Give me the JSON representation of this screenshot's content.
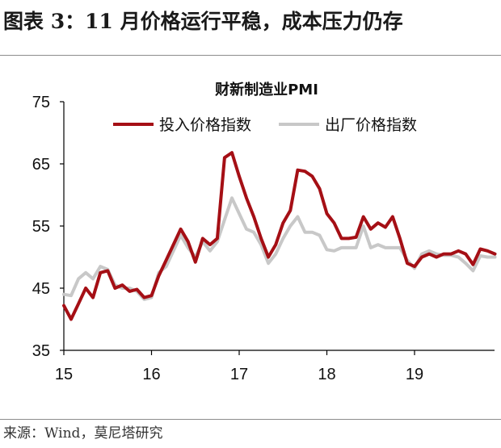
{
  "figure": {
    "title": "图表 3：11 月价格运行平稳，成本压力仍存",
    "source": "来源：Wind，莫尼塔研究"
  },
  "chart_data": {
    "type": "line",
    "title": "财新制造业PMI",
    "xlabel": "",
    "ylabel": "",
    "ylim": [
      35,
      75
    ],
    "yticks": [
      35,
      45,
      55,
      65,
      75
    ],
    "xlim": [
      15,
      19.9
    ],
    "xticks": [
      15,
      16,
      17,
      18,
      19
    ],
    "grid": false,
    "legend_position": "top",
    "series": [
      {
        "name": "投入价格指数",
        "color": "#a50f15",
        "x": [
          15.0,
          15.083,
          15.167,
          15.25,
          15.333,
          15.417,
          15.5,
          15.583,
          15.667,
          15.75,
          15.833,
          15.917,
          16.0,
          16.083,
          16.167,
          16.25,
          16.333,
          16.417,
          16.5,
          16.583,
          16.667,
          16.75,
          16.833,
          16.917,
          17.0,
          17.083,
          17.167,
          17.25,
          17.333,
          17.417,
          17.5,
          17.583,
          17.667,
          17.75,
          17.833,
          17.917,
          18.0,
          18.083,
          18.167,
          18.25,
          18.333,
          18.417,
          18.5,
          18.583,
          18.667,
          18.75,
          18.833,
          18.917,
          19.0,
          19.083,
          19.167,
          19.25,
          19.333,
          19.417,
          19.5,
          19.583,
          19.667,
          19.75,
          19.833,
          19.917
        ],
        "values": [
          42.2,
          40.0,
          42.5,
          45.0,
          43.5,
          47.5,
          47.8,
          45.0,
          45.5,
          44.5,
          44.8,
          43.5,
          43.8,
          47.0,
          49.5,
          52.0,
          54.5,
          52.5,
          49.2,
          53.0,
          52.0,
          53.0,
          66.0,
          66.8,
          63.0,
          59.5,
          56.5,
          53.0,
          50.0,
          52.0,
          55.5,
          57.5,
          64.0,
          63.8,
          63.0,
          61.0,
          57.0,
          55.5,
          53.0,
          53.0,
          53.2,
          56.5,
          54.5,
          55.5,
          54.8,
          56.5,
          53.0,
          49.0,
          48.5,
          50.0,
          50.5,
          50.0,
          50.5,
          50.5,
          51.0,
          50.5,
          48.8,
          51.3,
          51.0,
          50.5
        ]
      },
      {
        "name": "出厂价格指数",
        "color": "#c8c8c8",
        "x": [
          15.0,
          15.083,
          15.167,
          15.25,
          15.333,
          15.417,
          15.5,
          15.583,
          15.667,
          15.75,
          15.833,
          15.917,
          16.0,
          16.083,
          16.167,
          16.25,
          16.333,
          16.417,
          16.5,
          16.583,
          16.667,
          16.75,
          16.833,
          16.917,
          17.0,
          17.083,
          17.167,
          17.25,
          17.333,
          17.417,
          17.5,
          17.583,
          17.667,
          17.75,
          17.833,
          17.917,
          18.0,
          18.083,
          18.167,
          18.25,
          18.333,
          18.417,
          18.5,
          18.583,
          18.667,
          18.75,
          18.833,
          18.917,
          19.0,
          19.083,
          19.167,
          19.25,
          19.333,
          19.417,
          19.5,
          19.583,
          19.667,
          19.75,
          19.833,
          19.917
        ],
        "values": [
          44.0,
          43.8,
          46.5,
          47.5,
          46.5,
          48.5,
          48.0,
          45.5,
          45.0,
          45.0,
          44.5,
          43.2,
          43.5,
          47.5,
          48.5,
          51.0,
          53.5,
          51.5,
          50.0,
          52.5,
          51.0,
          52.5,
          56.0,
          59.5,
          57.0,
          54.5,
          54.0,
          52.0,
          49.0,
          50.5,
          53.0,
          55.0,
          56.5,
          54.0,
          54.0,
          53.5,
          51.2,
          51.0,
          51.5,
          51.5,
          51.5,
          55.0,
          51.5,
          52.0,
          51.5,
          51.5,
          51.5,
          49.5,
          48.2,
          50.5,
          51.0,
          50.5,
          50.3,
          50.3,
          50.0,
          49.0,
          47.8,
          50.2,
          50.0,
          50.0
        ]
      }
    ]
  }
}
